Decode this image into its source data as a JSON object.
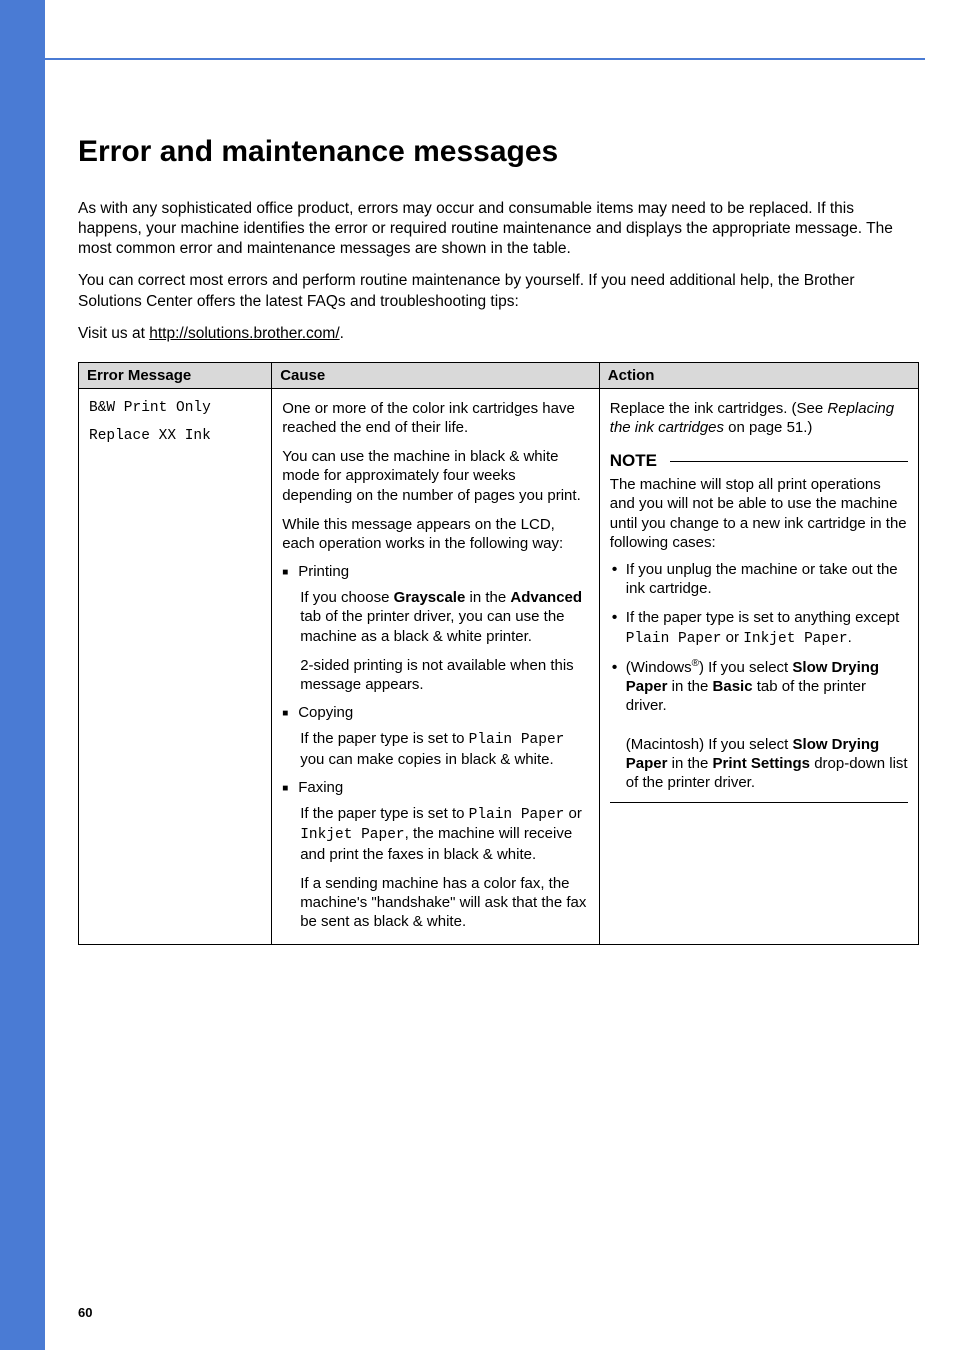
{
  "page": {
    "title": "Error and maintenance messages",
    "intro1": "As with any sophisticated office product, errors may occur and consumable items may need to be replaced. If this happens, your machine identifies the error or required routine maintenance and displays the appropriate message. The most common error and maintenance messages are shown in the table.",
    "intro2": "You can correct most errors and perform routine maintenance by yourself. If you need additional help, the Brother Solutions Center offers the latest FAQs and troubleshooting tips:",
    "visit_prefix": "Visit us at ",
    "visit_link": "http://solutions.brother.com/",
    "visit_suffix": ".",
    "page_number": "60"
  },
  "table": {
    "headers": {
      "msg": "Error Message",
      "cause": "Cause",
      "action": "Action"
    },
    "row1": {
      "msg_line1": "B&W Print Only",
      "msg_line2": "Replace XX Ink",
      "cause": {
        "p1": "One or more of the color ink cartridges have reached the end of their life.",
        "p2": "You can use the machine in black & white mode for approximately four weeks depending on the number of pages you print.",
        "p3": "While this message appears on the LCD, each operation works in the following way:",
        "printing": "Printing",
        "printing_sub1_a": "If you choose ",
        "printing_sub1_b": "Grayscale",
        "printing_sub1_c": " in the ",
        "printing_sub1_d": "Advanced",
        "printing_sub1_e": " tab of the printer driver, you can use the machine as a black & white printer.",
        "printing_sub2": "2-sided printing is not available when this message appears.",
        "copying": "Copying",
        "copying_sub_a": "If the paper type is set to ",
        "copying_sub_b": "Plain Paper",
        "copying_sub_c": " you can make copies in black & white.",
        "faxing": "Faxing",
        "faxing_sub1_a": "If the paper type is set to ",
        "faxing_sub1_b": "Plain Paper",
        "faxing_sub1_c": " or ",
        "faxing_sub1_d": "Inkjet Paper",
        "faxing_sub1_e": ", the machine will receive and print the faxes in black & white.",
        "faxing_sub2": "If a sending machine has a color fax, the machine's \"handshake\" will ask that the fax be sent as black & white."
      },
      "action": {
        "top_a": "Replace the ink cartridges. (See ",
        "top_b": "Replacing the ink cartridges",
        "top_c": " on page 51.)",
        "note": "NOTE",
        "note_body": "The machine will stop all print operations and you will not be able to use the machine until you change to a new ink cartridge in the following cases:",
        "b1": "If you unplug the machine or take out the ink cartridge.",
        "b2_a": "If the paper type is set to anything except ",
        "b2_b": "Plain Paper",
        "b2_c": " or ",
        "b2_d": "Inkjet Paper",
        "b2_e": ".",
        "b3_a": "(Windows",
        "b3_b": ") If you select ",
        "b3_c": "Slow Drying Paper",
        "b3_d": " in the ",
        "b3_e": "Basic",
        "b3_f": " tab of the printer driver.",
        "b3_g": "(Macintosh) If you select ",
        "b3_h": "Slow Drying Paper",
        "b3_i": " in the ",
        "b3_j": "Print Settings",
        "b3_k": " drop-down list of the printer driver."
      }
    }
  }
}
